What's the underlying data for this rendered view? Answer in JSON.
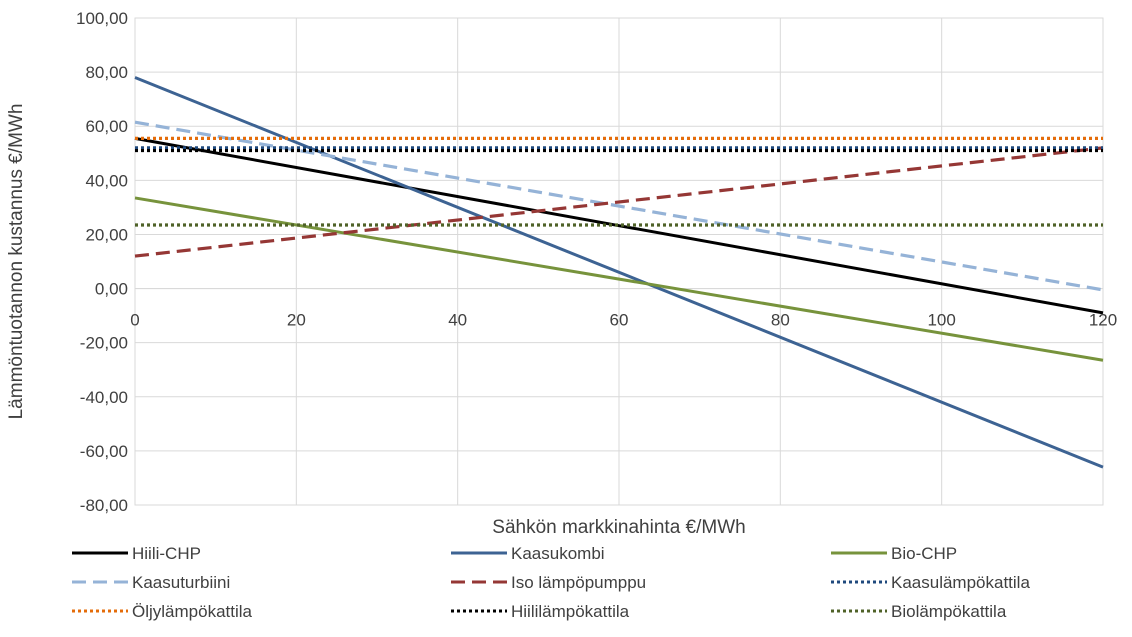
{
  "chart_data": {
    "type": "line",
    "title": "",
    "xlabel": "Sähkön markkinahinta €/MWh",
    "ylabel": "Lämmöntuotannon kustannus €/MWh",
    "xlim": [
      0,
      120
    ],
    "ylim": [
      -80,
      100
    ],
    "x_ticks": [
      0,
      20,
      40,
      60,
      80,
      100,
      120
    ],
    "x_tick_labels": [
      "0",
      "20",
      "40",
      "60",
      "80",
      "100",
      "120"
    ],
    "y_ticks": [
      -80,
      -60,
      -40,
      -20,
      0,
      20,
      40,
      60,
      80,
      100
    ],
    "y_tick_labels": [
      "-80,00",
      "-60,00",
      "-40,00",
      "-20,00",
      "0,00",
      "20,00",
      "40,00",
      "60,00",
      "80,00",
      "100,00"
    ],
    "grid": true,
    "legend_position": "bottom",
    "series": [
      {
        "name": "Hiili-CHP",
        "x": [
          0,
          120
        ],
        "y": [
          55.5,
          -9
        ],
        "color": "#000000",
        "style": "solid"
      },
      {
        "name": "Kaasukombi",
        "x": [
          0,
          120
        ],
        "y": [
          78,
          -66
        ],
        "color": "#3d6393",
        "style": "solid"
      },
      {
        "name": "Bio-CHP",
        "x": [
          0,
          120
        ],
        "y": [
          33.5,
          -26.5
        ],
        "color": "#77933c",
        "style": "solid"
      },
      {
        "name": "Kaasuturbiini",
        "x": [
          0,
          120
        ],
        "y": [
          61.5,
          -0.5
        ],
        "color": "#95b3d7",
        "style": "dashed"
      },
      {
        "name": "Iso lämpöpumppu",
        "x": [
          0,
          120
        ],
        "y": [
          12,
          52
        ],
        "color": "#953735",
        "style": "dashed"
      },
      {
        "name": "Kaasulämpökattila",
        "x": [
          0,
          120
        ],
        "y": [
          52,
          52
        ],
        "color": "#1f497d",
        "style": "dotted"
      },
      {
        "name": "Öljylämpökattila",
        "x": [
          0,
          120
        ],
        "y": [
          55.5,
          55.5
        ],
        "color": "#e46c0a",
        "style": "dotted"
      },
      {
        "name": "Hiililämpökattila",
        "x": [
          0,
          120
        ],
        "y": [
          51,
          51
        ],
        "color": "#000000",
        "style": "dotted"
      },
      {
        "name": "Biolämpökattila",
        "x": [
          0,
          120
        ],
        "y": [
          23.5,
          23.5
        ],
        "color": "#4f6228",
        "style": "dotted"
      }
    ]
  }
}
